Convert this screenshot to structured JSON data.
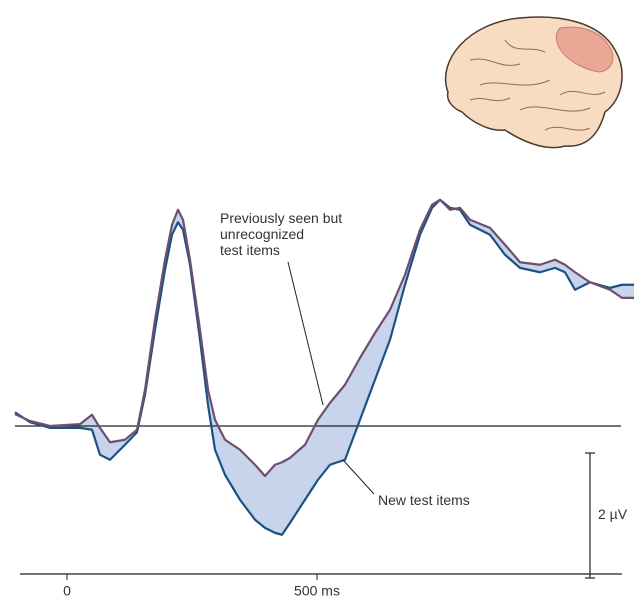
{
  "chart_data": {
    "type": "line",
    "x": [
      -104,
      -74,
      -34,
      26,
      50,
      66,
      86,
      116,
      140,
      156,
      176,
      196,
      210,
      222,
      232,
      246,
      266,
      282,
      296,
      316,
      346,
      376,
      396,
      416,
      430,
      446,
      476,
      502,
      526,
      556,
      586,
      616,
      646,
      676,
      706,
      730,
      746,
      766,
      786,
      806,
      846,
      876,
      906,
      946,
      976,
      996,
      1016,
      1046,
      1086,
      1110,
      1134
    ],
    "series": [
      {
        "name": "Previously seen but\nunrecognized\ntest items",
        "color": "#6e4f6f",
        "values": [
          0.19,
          0.08,
          0,
          0.03,
          0.18,
          -0.03,
          -0.26,
          -0.22,
          -0.06,
          0.58,
          1.7,
          2.66,
          3.22,
          3.46,
          3.3,
          2.66,
          1.54,
          0.58,
          0.1,
          -0.22,
          -0.38,
          -0.62,
          -0.8,
          -0.62,
          -0.58,
          -0.51,
          -0.3,
          0.1,
          0.37,
          0.66,
          1.09,
          1.49,
          1.86,
          2.42,
          3.14,
          3.54,
          3.62,
          3.46,
          3.49,
          3.3,
          3.17,
          2.9,
          2.62,
          2.58,
          2.66,
          2.58,
          2.46,
          2.3,
          2.18,
          2.05,
          2.05
        ]
      },
      {
        "name": "New test items",
        "color": "#1b5283",
        "values": [
          0.22,
          0.06,
          -0.03,
          -0.03,
          -0.06,
          -0.46,
          -0.54,
          -0.3,
          -0.1,
          0.5,
          1.54,
          2.5,
          3.06,
          3.26,
          3.14,
          2.58,
          1.38,
          0.34,
          -0.38,
          -0.78,
          -1.18,
          -1.5,
          -1.63,
          -1.71,
          -1.74,
          -1.55,
          -1.18,
          -0.86,
          -0.62,
          -0.54,
          0.1,
          0.74,
          1.38,
          2.26,
          3.06,
          3.49,
          3.62,
          3.49,
          3.46,
          3.22,
          3.06,
          2.74,
          2.53,
          2.46,
          2.53,
          2.46,
          2.18,
          2.3,
          2.21,
          2.26,
          2.26
        ]
      }
    ],
    "fill_color": "#c8d4ec",
    "xlim": [
      -104,
      1134
    ],
    "ylim": [
      -2.4,
      4
    ],
    "xticks": [
      0,
      {
        "value": 500,
        "label": "500 ms"
      }
    ],
    "scale_bar": {
      "value": 2,
      "label": "2 µV"
    }
  }
}
